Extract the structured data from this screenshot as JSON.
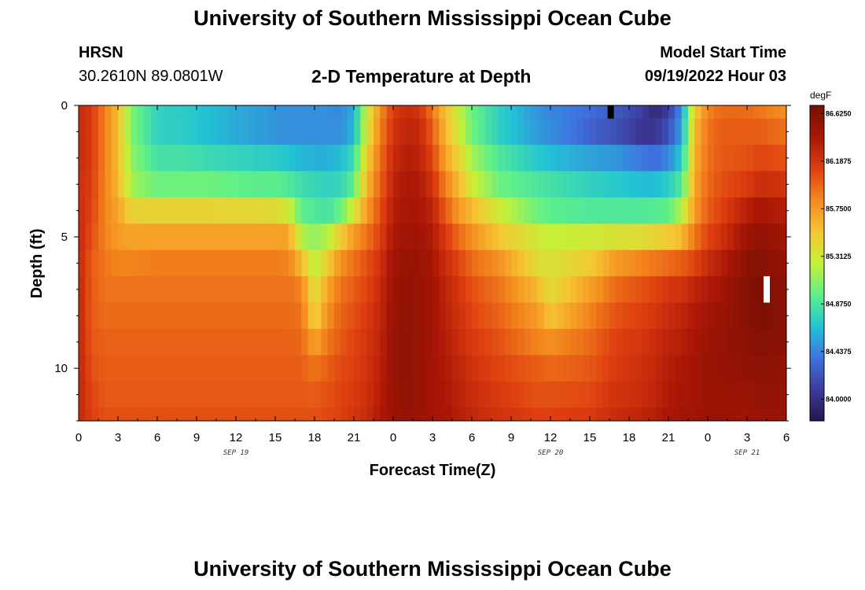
{
  "header": {
    "title": "University of Southern Mississippi Ocean Cube",
    "station": "HRSN",
    "coords": "30.2610N  89.0801W",
    "subtitle": "2-D Temperature at Depth",
    "model_start_label": "Model Start Time",
    "model_start_value": "09/19/2022 Hour 03"
  },
  "footer": {
    "title": "University of Southern Mississippi Ocean Cube"
  },
  "chart_data": {
    "type": "heatmap",
    "title": "2-D Temperature at Depth",
    "xlabel": "Forecast Time(Z)",
    "ylabel": "Depth (ft)",
    "x_range_hours": [
      0,
      54
    ],
    "ylim": [
      0,
      12
    ],
    "y_inverted": true,
    "x_tick_labels": [
      "0",
      "3",
      "6",
      "9",
      "12",
      "15",
      "18",
      "21",
      "0",
      "3",
      "6",
      "9",
      "12",
      "15",
      "18",
      "21",
      "0",
      "3",
      "6"
    ],
    "y_tick_labels": [
      "0",
      "5",
      "10"
    ],
    "y_tick_values": [
      0,
      5,
      10
    ],
    "date_labels": [
      {
        "text": "SEP 19",
        "hour": 12
      },
      {
        "text": "SEP 20",
        "hour": 36
      },
      {
        "text": "SEP 21",
        "hour": 51
      }
    ],
    "colorbar": {
      "unit": "degF",
      "min": 83.8,
      "max": 86.7,
      "tick_labels": [
        "86.6250",
        "86.1875",
        "85.7500",
        "85.3125",
        "84.8750",
        "84.4375",
        "84.0000"
      ],
      "tick_values": [
        86.625,
        86.1875,
        85.75,
        85.3125,
        84.875,
        84.4375,
        84.0
      ],
      "colors": [
        "#2a1450",
        "#3d3c9c",
        "#3e73e0",
        "#22c4d4",
        "#5ef08a",
        "#c6f036",
        "#f6c534",
        "#f4891e",
        "#de3e10",
        "#aa1606",
        "#761004"
      ]
    },
    "depth_layers_ft": [
      0,
      1,
      2,
      3,
      4,
      5,
      6,
      7,
      8,
      9,
      10,
      11,
      12
    ],
    "profiles_hours": [
      0,
      1,
      2,
      3,
      4,
      6,
      8,
      10,
      13,
      15,
      16,
      17,
      18,
      19,
      20,
      21,
      22,
      23,
      24,
      25,
      26,
      27,
      28,
      29,
      30,
      32,
      35,
      36,
      39,
      41,
      43,
      44,
      45,
      46,
      47,
      48,
      49,
      51,
      52,
      54
    ],
    "temperature_degF": [
      [
        86.25,
        86.25,
        86.25,
        86.25,
        86.25,
        86.28,
        86.28,
        86.3,
        86.3,
        86.3,
        86.3,
        86.3,
        86.28
      ],
      [
        86.15,
        86.15,
        86.15,
        86.12,
        86.1,
        86.05,
        86.0,
        86.0,
        86.0,
        86.02,
        86.05,
        86.1,
        86.12
      ],
      [
        85.85,
        85.85,
        85.85,
        85.85,
        85.85,
        85.85,
        85.9,
        85.92,
        85.95,
        85.98,
        86.0,
        86.02,
        86.05
      ],
      [
        85.6,
        85.6,
        85.6,
        85.62,
        85.7,
        85.75,
        85.85,
        85.92,
        85.95,
        85.98,
        86.0,
        86.02,
        86.05
      ],
      [
        85.05,
        85.05,
        85.1,
        85.15,
        85.45,
        85.7,
        85.85,
        85.92,
        85.95,
        85.98,
        86.0,
        86.02,
        86.05
      ],
      [
        84.75,
        84.75,
        84.85,
        85.0,
        85.45,
        85.72,
        85.88,
        85.92,
        85.95,
        85.98,
        86.0,
        86.02,
        86.05
      ],
      [
        84.72,
        84.72,
        84.85,
        85.0,
        85.45,
        85.72,
        85.88,
        85.92,
        85.95,
        85.98,
        86.0,
        86.02,
        86.05
      ],
      [
        84.65,
        84.65,
        84.8,
        85.0,
        85.45,
        85.72,
        85.88,
        85.92,
        85.95,
        85.98,
        86.0,
        86.02,
        86.05
      ],
      [
        84.55,
        84.55,
        84.75,
        84.95,
        85.42,
        85.72,
        85.88,
        85.92,
        85.95,
        85.98,
        86.0,
        86.02,
        86.05
      ],
      [
        84.5,
        84.5,
        84.72,
        84.95,
        85.4,
        85.72,
        85.88,
        85.92,
        85.95,
        85.98,
        86.0,
        86.02,
        86.05
      ],
      [
        84.48,
        84.48,
        84.68,
        84.9,
        85.3,
        85.7,
        85.85,
        85.92,
        85.95,
        85.98,
        86.0,
        86.02,
        86.05
      ],
      [
        84.48,
        84.48,
        84.62,
        84.82,
        84.95,
        85.2,
        85.6,
        85.85,
        85.92,
        85.96,
        86.0,
        86.02,
        86.05
      ],
      [
        84.48,
        84.48,
        84.6,
        84.78,
        84.9,
        85.1,
        85.2,
        85.35,
        85.45,
        85.7,
        85.9,
        86.0,
        86.05
      ],
      [
        84.48,
        84.48,
        84.6,
        84.75,
        84.85,
        85.2,
        85.5,
        85.7,
        85.8,
        85.9,
        86.0,
        86.05,
        86.08
      ],
      [
        84.45,
        84.48,
        84.65,
        84.78,
        85.0,
        85.5,
        85.8,
        85.92,
        85.98,
        86.02,
        86.08,
        86.1,
        86.12
      ],
      [
        84.6,
        84.62,
        84.8,
        84.95,
        85.3,
        85.75,
        85.92,
        86.0,
        86.05,
        86.1,
        86.12,
        86.15,
        86.18
      ],
      [
        85.3,
        85.35,
        85.5,
        85.6,
        85.75,
        85.92,
        86.05,
        86.1,
        86.15,
        86.18,
        86.2,
        86.22,
        86.25
      ],
      [
        85.8,
        85.85,
        85.92,
        85.98,
        86.05,
        86.12,
        86.2,
        86.25,
        86.28,
        86.3,
        86.32,
        86.35,
        86.38
      ],
      [
        86.15,
        86.2,
        86.25,
        86.3,
        86.35,
        86.4,
        86.45,
        86.48,
        86.5,
        86.52,
        86.52,
        86.5,
        86.5
      ],
      [
        86.25,
        86.3,
        86.35,
        86.4,
        86.42,
        86.48,
        86.52,
        86.55,
        86.55,
        86.55,
        86.55,
        86.55,
        86.52
      ],
      [
        86.2,
        86.28,
        86.32,
        86.38,
        86.42,
        86.45,
        86.5,
        86.52,
        86.52,
        86.52,
        86.52,
        86.52,
        86.5
      ],
      [
        85.9,
        86.0,
        86.1,
        86.2,
        86.3,
        86.38,
        86.42,
        86.45,
        86.45,
        86.45,
        86.45,
        86.45,
        86.45
      ],
      [
        85.55,
        85.6,
        85.7,
        85.85,
        86.0,
        86.15,
        86.25,
        86.3,
        86.32,
        86.35,
        86.38,
        86.4,
        86.42
      ],
      [
        85.25,
        85.3,
        85.45,
        85.6,
        85.75,
        85.95,
        86.1,
        86.18,
        86.22,
        86.25,
        86.3,
        86.32,
        86.35
      ],
      [
        85.0,
        85.02,
        85.15,
        85.3,
        85.6,
        85.8,
        85.95,
        86.05,
        86.1,
        86.15,
        86.2,
        86.25,
        86.28
      ],
      [
        84.75,
        84.75,
        84.9,
        85.0,
        85.3,
        85.55,
        85.8,
        85.92,
        85.98,
        86.05,
        86.1,
        86.15,
        86.2
      ],
      [
        84.5,
        84.52,
        84.7,
        84.88,
        85.0,
        85.3,
        85.4,
        85.6,
        85.75,
        85.85,
        86.0,
        86.05,
        86.12
      ],
      [
        84.45,
        84.48,
        84.65,
        84.85,
        84.95,
        85.25,
        85.35,
        85.4,
        85.55,
        85.8,
        85.95,
        86.05,
        86.12
      ],
      [
        84.35,
        84.3,
        84.55,
        84.75,
        84.9,
        85.3,
        85.5,
        85.72,
        85.85,
        85.95,
        86.02,
        86.08,
        86.15
      ],
      [
        84.25,
        84.2,
        84.5,
        84.7,
        84.9,
        85.35,
        85.75,
        85.95,
        86.05,
        86.12,
        86.15,
        86.2,
        86.25
      ],
      [
        84.1,
        84.05,
        84.4,
        84.65,
        84.9,
        85.4,
        85.85,
        86.05,
        86.12,
        86.18,
        86.22,
        86.25,
        86.3
      ],
      [
        83.95,
        84.05,
        84.35,
        84.65,
        84.92,
        85.45,
        85.9,
        86.1,
        86.18,
        86.25,
        86.28,
        86.3,
        86.35
      ],
      [
        84.1,
        84.2,
        84.45,
        84.72,
        84.95,
        85.5,
        85.95,
        86.18,
        86.25,
        86.3,
        86.35,
        86.38,
        86.42
      ],
      [
        84.5,
        84.55,
        84.7,
        84.9,
        85.2,
        85.6,
        86.0,
        86.2,
        86.3,
        86.35,
        86.4,
        86.42,
        86.45
      ],
      [
        85.5,
        85.6,
        85.65,
        85.7,
        85.75,
        85.9,
        86.1,
        86.3,
        86.38,
        86.42,
        86.45,
        86.45,
        86.48
      ],
      [
        85.85,
        85.9,
        85.92,
        85.95,
        86.0,
        86.1,
        86.25,
        86.38,
        86.45,
        86.48,
        86.5,
        86.5,
        86.5
      ],
      [
        85.95,
        86.0,
        86.02,
        86.05,
        86.1,
        86.2,
        86.35,
        86.45,
        86.5,
        86.52,
        86.52,
        86.5,
        86.5
      ],
      [
        85.95,
        86.0,
        86.05,
        86.15,
        86.35,
        86.48,
        86.58,
        86.62,
        86.6,
        86.58,
        86.55,
        86.5,
        86.48
      ],
      [
        85.9,
        86.0,
        86.1,
        86.25,
        86.42,
        86.55,
        86.62,
        86.66,
        86.66,
        86.62,
        86.58,
        86.55,
        86.5
      ],
      [
        85.8,
        85.92,
        86.05,
        86.2,
        86.35,
        86.45,
        86.52,
        86.58,
        86.6,
        86.58,
        86.55,
        86.52,
        86.5
      ]
    ],
    "markers": [
      {
        "hour": 40.6,
        "depth_from": 0.0,
        "depth_to": 0.5,
        "color": "#000000"
      },
      {
        "hour": 52.5,
        "depth_from": 6.5,
        "depth_to": 7.5,
        "color": "#ffffff"
      }
    ]
  }
}
